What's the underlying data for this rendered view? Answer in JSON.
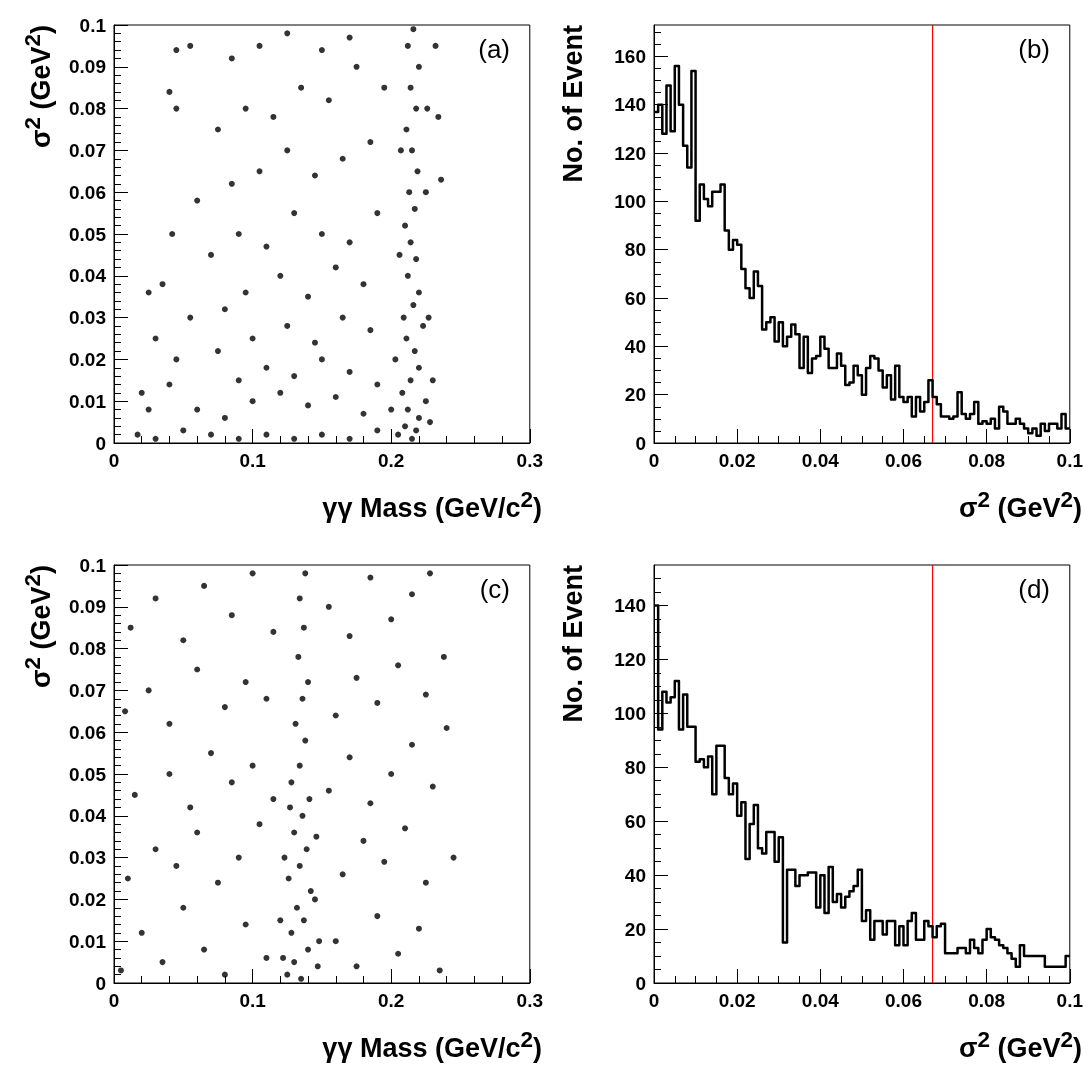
{
  "chart_data": [
    {
      "type": "scatter",
      "annotations": [
        "(a)"
      ],
      "xlabel": "γγ Mass (GeV/c$^{2}$)",
      "ylabel": "σ$^{2}$ (GeV$^{2}$)",
      "xlim": [
        0,
        0.3
      ],
      "xticks": [
        0,
        0.1,
        0.2,
        0.3
      ],
      "ylim": [
        0,
        0.1
      ],
      "yticks": [
        0,
        0.01,
        0.02,
        0.03,
        0.04,
        0.05,
        0.06,
        0.07,
        0.08,
        0.09,
        0.1
      ],
      "grid": false,
      "marker": "circle",
      "color": "#000000",
      "x": [
        0.205,
        0.21,
        0.215,
        0.22,
        0.212,
        0.218,
        0.225,
        0.208,
        0.214,
        0.22,
        0.203,
        0.217,
        0.211,
        0.223,
        0.209,
        0.216,
        0.22,
        0.212,
        0.218,
        0.214,
        0.21,
        0.217,
        0.213,
        0.219,
        0.215,
        0.211,
        0.218,
        0.214,
        0.22,
        0.212,
        0.216,
        0.228,
        0.2,
        0.23,
        0.227,
        0.206,
        0.225,
        0.207,
        0.226,
        0.232,
        0.236,
        0.234,
        0.03,
        0.05,
        0.07,
        0.09,
        0.11,
        0.13,
        0.15,
        0.17,
        0.19,
        0.06,
        0.08,
        0.1,
        0.12,
        0.14,
        0.16,
        0.18,
        0.09,
        0.11,
        0.13,
        0.15,
        0.17,
        0.19,
        0.075,
        0.1,
        0.125,
        0.145,
        0.165,
        0.185,
        0.08,
        0.095,
        0.12,
        0.14,
        0.16,
        0.18,
        0.07,
        0.09,
        0.11,
        0.13,
        0.15,
        0.17,
        0.19,
        0.06,
        0.085,
        0.105,
        0.125,
        0.145,
        0.165,
        0.185,
        0.075,
        0.095,
        0.115,
        0.135,
        0.155,
        0.175,
        0.195,
        0.085,
        0.105,
        0.125,
        0.15,
        0.17,
        0.045,
        0.042,
        0.045,
        0.04,
        0.03,
        0.025,
        0.02,
        0.035,
        0.045,
        0.055,
        0.017,
        0.025,
        0.04,
        0.055
      ],
      "values": [
        0.002,
        0.004,
        0.001,
        0.006,
        0.008,
        0.003,
        0.01,
        0.012,
        0.015,
        0.018,
        0.02,
        0.022,
        0.025,
        0.028,
        0.03,
        0.033,
        0.036,
        0.04,
        0.044,
        0.048,
        0.052,
        0.056,
        0.06,
        0.065,
        0.07,
        0.075,
        0.08,
        0.085,
        0.09,
        0.095,
        0.099,
        0.005,
        0.008,
        0.015,
        0.03,
        0.045,
        0.06,
        0.07,
        0.08,
        0.095,
        0.063,
        0.078,
        0.001,
        0.003,
        0.002,
        0.001,
        0.002,
        0.001,
        0.002,
        0.001,
        0.003,
        0.008,
        0.006,
        0.01,
        0.012,
        0.009,
        0.011,
        0.007,
        0.015,
        0.018,
        0.016,
        0.02,
        0.017,
        0.014,
        0.022,
        0.025,
        0.028,
        0.024,
        0.03,
        0.027,
        0.032,
        0.036,
        0.04,
        0.035,
        0.042,
        0.038,
        0.045,
        0.05,
        0.047,
        0.055,
        0.05,
        0.048,
        0.055,
        0.058,
        0.062,
        0.065,
        0.07,
        0.064,
        0.068,
        0.072,
        0.075,
        0.08,
        0.078,
        0.085,
        0.082,
        0.09,
        0.085,
        0.092,
        0.095,
        0.098,
        0.094,
        0.097,
        0.08,
        0.05,
        0.094,
        0.084,
        0.025,
        0.036,
        0.012,
        0.038,
        0.02,
        0.03,
        0.002,
        0.008,
        0.014,
        0.095
      ]
    },
    {
      "type": "histogram",
      "annotations": [
        "(b)"
      ],
      "xlabel": "σ$^{2}$ (GeV$^{2}$)",
      "ylabel": "No. of Event",
      "xlim": [
        0,
        0.1
      ],
      "xticks": [
        0,
        0.02,
        0.04,
        0.06,
        0.08,
        0.1
      ],
      "ylim": [
        0,
        173
      ],
      "yticks": [
        0,
        20,
        40,
        60,
        80,
        100,
        120,
        140,
        160
      ],
      "grid": false,
      "color": "#000000",
      "ref_lines": [
        {
          "axis": "x",
          "value": 0.067,
          "color": "#ff0000",
          "line_style": "solid"
        }
      ],
      "bins": [
        0,
        0.001,
        0.002,
        0.003,
        0.004,
        0.005,
        0.006,
        0.007,
        0.008,
        0.009,
        0.01,
        0.011,
        0.012,
        0.013,
        0.014,
        0.015,
        0.016,
        0.017,
        0.018,
        0.019,
        0.02,
        0.021,
        0.022,
        0.023,
        0.024,
        0.025,
        0.026,
        0.027,
        0.028,
        0.029,
        0.03,
        0.031,
        0.032,
        0.033,
        0.034,
        0.035,
        0.036,
        0.037,
        0.038,
        0.039,
        0.04,
        0.041,
        0.042,
        0.043,
        0.044,
        0.045,
        0.046,
        0.047,
        0.048,
        0.049,
        0.05,
        0.051,
        0.052,
        0.053,
        0.054,
        0.055,
        0.056,
        0.057,
        0.058,
        0.059,
        0.06,
        0.061,
        0.062,
        0.063,
        0.064,
        0.065,
        0.066,
        0.067,
        0.068,
        0.069,
        0.07,
        0.071,
        0.072,
        0.073,
        0.074,
        0.075,
        0.076,
        0.077,
        0.078,
        0.079,
        0.08,
        0.081,
        0.082,
        0.083,
        0.084,
        0.085,
        0.086,
        0.087,
        0.088,
        0.089,
        0.09,
        0.091,
        0.092,
        0.093,
        0.094,
        0.095,
        0.096,
        0.097,
        0.098,
        0.099,
        0.1
      ],
      "values": [
        137,
        140,
        128,
        148,
        129,
        156,
        140,
        123,
        114,
        154,
        92,
        107,
        101,
        98,
        104,
        104,
        107,
        88,
        80,
        84,
        82,
        72,
        64,
        60,
        71,
        65,
        47,
        50,
        52,
        42,
        50,
        40,
        44,
        49,
        45,
        31,
        44,
        29,
        35,
        36,
        44,
        39,
        31,
        31,
        37,
        32,
        24,
        25,
        32,
        28,
        20,
        31,
        36,
        35,
        30,
        23,
        28,
        18,
        32,
        19,
        17,
        19,
        11,
        19,
        13,
        17,
        26,
        19,
        16,
        11,
        11,
        10,
        11,
        21,
        12,
        10,
        12,
        17,
        8,
        9,
        8,
        10,
        6,
        15,
        13,
        8,
        8,
        10,
        8,
        6,
        4,
        6,
        3,
        8,
        5,
        8,
        8,
        6,
        12,
        6
      ]
    },
    {
      "type": "scatter",
      "annotations": [
        "(c)"
      ],
      "xlabel": "γγ Mass (GeV/c$^{2}$)",
      "ylabel": "σ$^{2}$ (GeV$^{2}$)",
      "xlim": [
        0,
        0.3
      ],
      "xticks": [
        0,
        0.1,
        0.2,
        0.3
      ],
      "ylim": [
        0,
        0.1
      ],
      "yticks": [
        0,
        0.01,
        0.02,
        0.03,
        0.04,
        0.05,
        0.06,
        0.07,
        0.08,
        0.09,
        0.1
      ],
      "grid": false,
      "marker": "circle",
      "color": "#000000",
      "x": [
        0.125,
        0.13,
        0.135,
        0.14,
        0.128,
        0.137,
        0.132,
        0.142,
        0.126,
        0.134,
        0.139,
        0.13,
        0.136,
        0.141,
        0.128,
        0.134,
        0.138,
        0.131,
        0.136,
        0.14,
        0.133,
        0.137,
        0.134,
        0.138,
        0.122,
        0.147,
        0.12,
        0.145,
        0.148,
        0.123,
        0.146,
        0.127,
        0.005,
        0.02,
        0.035,
        0.05,
        0.065,
        0.08,
        0.095,
        0.11,
        0.16,
        0.175,
        0.19,
        0.205,
        0.22,
        0.235,
        0.01,
        0.03,
        0.045,
        0.06,
        0.075,
        0.09,
        0.105,
        0.165,
        0.18,
        0.195,
        0.21,
        0.225,
        0.015,
        0.04,
        0.055,
        0.07,
        0.085,
        0.1,
        0.115,
        0.155,
        0.17,
        0.185,
        0.2,
        0.215,
        0.23,
        0.008,
        0.025,
        0.04,
        0.06,
        0.08,
        0.095,
        0.11,
        0.16,
        0.175,
        0.19,
        0.205,
        0.225,
        0.012,
        0.03,
        0.05,
        0.065,
        0.085,
        0.1,
        0.115,
        0.155,
        0.17,
        0.185,
        0.2,
        0.215,
        0.24,
        0.245,
        0.238,
        0.228
      ],
      "values": [
        0.002,
        0.005,
        0.001,
        0.008,
        0.012,
        0.015,
        0.018,
        0.022,
        0.025,
        0.028,
        0.032,
        0.036,
        0.04,
        0.044,
        0.048,
        0.052,
        0.058,
        0.062,
        0.068,
        0.072,
        0.078,
        0.085,
        0.092,
        0.098,
        0.006,
        0.004,
        0.015,
        0.02,
        0.01,
        0.03,
        0.035,
        0.042,
        0.003,
        0.012,
        0.005,
        0.018,
        0.008,
        0.002,
        0.014,
        0.006,
        0.01,
        0.004,
        0.016,
        0.007,
        0.013,
        0.003,
        0.025,
        0.032,
        0.028,
        0.036,
        0.024,
        0.03,
        0.038,
        0.026,
        0.034,
        0.029,
        0.037,
        0.024,
        0.045,
        0.05,
        0.042,
        0.055,
        0.048,
        0.052,
        0.044,
        0.046,
        0.054,
        0.043,
        0.05,
        0.057,
        0.047,
        0.065,
        0.07,
        0.062,
        0.075,
        0.066,
        0.072,
        0.068,
        0.064,
        0.073,
        0.067,
        0.076,
        0.069,
        0.085,
        0.092,
        0.082,
        0.095,
        0.088,
        0.098,
        0.084,
        0.09,
        0.083,
        0.097,
        0.087,
        0.093,
        0.061,
        0.03,
        0.078,
        0.098
      ]
    },
    {
      "type": "histogram",
      "annotations": [
        "(d)"
      ],
      "xlabel": "σ$^{2}$ (GeV$^{2}$)",
      "ylabel": "No. of Event",
      "xlim": [
        0,
        0.1
      ],
      "xticks": [
        0,
        0.02,
        0.04,
        0.06,
        0.08,
        0.1
      ],
      "ylim": [
        0,
        155
      ],
      "yticks": [
        0,
        20,
        40,
        60,
        80,
        100,
        120,
        140
      ],
      "grid": false,
      "color": "#000000",
      "ref_lines": [
        {
          "axis": "x",
          "value": 0.067,
          "color": "#ff0000",
          "line_style": "solid"
        }
      ],
      "bins": [
        0,
        0.001,
        0.002,
        0.003,
        0.004,
        0.005,
        0.006,
        0.007,
        0.008,
        0.009,
        0.01,
        0.011,
        0.012,
        0.013,
        0.014,
        0.015,
        0.016,
        0.017,
        0.018,
        0.019,
        0.02,
        0.021,
        0.022,
        0.023,
        0.024,
        0.025,
        0.026,
        0.027,
        0.028,
        0.029,
        0.03,
        0.031,
        0.032,
        0.033,
        0.034,
        0.035,
        0.036,
        0.037,
        0.038,
        0.039,
        0.04,
        0.041,
        0.042,
        0.043,
        0.044,
        0.045,
        0.046,
        0.047,
        0.048,
        0.049,
        0.05,
        0.051,
        0.052,
        0.053,
        0.054,
        0.055,
        0.056,
        0.057,
        0.058,
        0.059,
        0.06,
        0.061,
        0.062,
        0.063,
        0.064,
        0.065,
        0.066,
        0.067,
        0.068,
        0.069,
        0.07,
        0.071,
        0.072,
        0.073,
        0.074,
        0.075,
        0.076,
        0.077,
        0.078,
        0.079,
        0.08,
        0.081,
        0.082,
        0.083,
        0.084,
        0.085,
        0.086,
        0.087,
        0.088,
        0.089,
        0.09,
        0.091,
        0.092,
        0.093,
        0.094,
        0.095,
        0.096,
        0.097,
        0.098,
        0.099,
        0.1
      ],
      "values": [
        140,
        94,
        108,
        104,
        106,
        112,
        94,
        107,
        95,
        95,
        82,
        83,
        80,
        84,
        70,
        88,
        88,
        76,
        70,
        74,
        62,
        67,
        46,
        59,
        66,
        50,
        48,
        56,
        56,
        45,
        54,
        15,
        42,
        42,
        36,
        40,
        40,
        41,
        41,
        28,
        40,
        26,
        43,
        30,
        33,
        28,
        32,
        34,
        36,
        42,
        23,
        27,
        16,
        23,
        23,
        18,
        23,
        23,
        14,
        21,
        14,
        23,
        26,
        16,
        16,
        23,
        21,
        17,
        21,
        22,
        11,
        11,
        11,
        13,
        13,
        11,
        16,
        13,
        11,
        16,
        20,
        17,
        16,
        14,
        13,
        11,
        9,
        6,
        14,
        10,
        10,
        10,
        10,
        10,
        6,
        6,
        6,
        6,
        6,
        10
      ]
    }
  ]
}
